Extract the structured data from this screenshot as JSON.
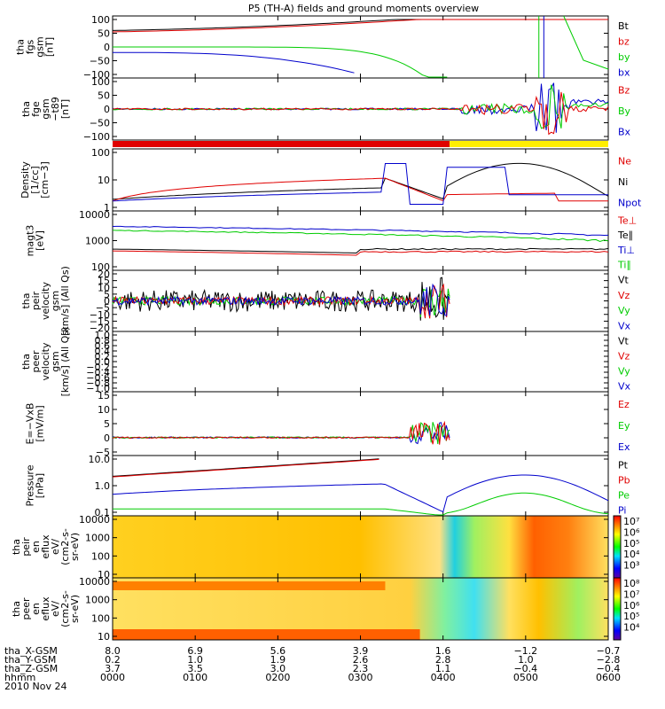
{
  "title": "P5 (TH-A) fields and ground moments overview",
  "colors": {
    "black": "#000000",
    "red": "#e00000",
    "green": "#00cc00",
    "blue": "#0000cc",
    "yellow": "#ffee00"
  },
  "panels": [
    {
      "id": "fgs",
      "ylabel": [
        "tha",
        "fgs",
        "gsm",
        "[nT]"
      ],
      "ticks": [
        "100",
        "50",
        "0",
        "−50",
        "−100"
      ],
      "legend": [
        {
          "t": "Bt",
          "c": "black"
        },
        {
          "t": "bz",
          "c": "red"
        },
        {
          "t": "by",
          "c": "green"
        },
        {
          "t": "bx",
          "c": "blue"
        }
      ]
    },
    {
      "id": "fge",
      "ylabel": [
        "tha",
        "fge",
        "gsm",
        "−t89",
        "[nT]"
      ],
      "ticks": [
        "100",
        "50",
        "0",
        "−50",
        "−100"
      ],
      "legend": [
        {
          "t": "Bz",
          "c": "red"
        },
        {
          "t": "By",
          "c": "green"
        },
        {
          "t": "Bx",
          "c": "blue"
        }
      ]
    },
    {
      "id": "density",
      "ylabel": [
        "Density",
        "[1/cc]",
        "[cm−3]"
      ],
      "ticks": [
        "100",
        "10",
        "1"
      ],
      "legend": [
        {
          "t": "Ne",
          "c": "red"
        },
        {
          "t": "Ni",
          "c": "black"
        },
        {
          "t": "Npot",
          "c": "blue"
        }
      ]
    },
    {
      "id": "temp",
      "ylabel": [
        "magt3",
        "[eV]"
      ],
      "ticks": [
        "10000",
        "1000",
        "100"
      ],
      "legend": [
        {
          "t": "Te⊥",
          "c": "red"
        },
        {
          "t": "Te∥",
          "c": "black"
        },
        {
          "t": "Ti⊥",
          "c": "blue"
        },
        {
          "t": "Ti∥",
          "c": "green"
        }
      ]
    },
    {
      "id": "peir_v",
      "ylabel": [
        "tha",
        "peir",
        "velocity",
        "gsm",
        "[km/s] (All Qs)"
      ],
      "ticks": [
        "20",
        "15",
        "10",
        "5",
        "0",
        "−5",
        "−10",
        "−15",
        "−20"
      ],
      "legend": [
        {
          "t": "Vt",
          "c": "black"
        },
        {
          "t": "Vz",
          "c": "red"
        },
        {
          "t": "Vy",
          "c": "green"
        },
        {
          "t": "Vx",
          "c": "blue"
        }
      ]
    },
    {
      "id": "peer_v",
      "ylabel": [
        "tha",
        "peer",
        "velocity",
        "gsm",
        "[km/s] (All Qs)"
      ],
      "ticks": [
        "1.0",
        "0.8",
        "0.6",
        "0.4",
        "0.2",
        "0.0",
        "−0.2",
        "−0.4",
        "−0.6",
        "−0.8",
        "−1.0"
      ],
      "legend": [
        {
          "t": "Vt",
          "c": "black"
        },
        {
          "t": "Vz",
          "c": "red"
        },
        {
          "t": "Vy",
          "c": "green"
        },
        {
          "t": "Vx",
          "c": "blue"
        }
      ]
    },
    {
      "id": "efield",
      "ylabel": [
        "E=−VxB",
        "[mV/m]"
      ],
      "ticks": [
        "15",
        "10",
        "5",
        "0",
        "−5"
      ],
      "legend": [
        {
          "t": "Ez",
          "c": "red"
        },
        {
          "t": "Ey",
          "c": "green"
        },
        {
          "t": "Ex",
          "c": "blue"
        }
      ]
    },
    {
      "id": "pressure",
      "ylabel": [
        "Pressure",
        "[nPa]"
      ],
      "ticks": [
        "10.0",
        "1.0",
        "0.1"
      ],
      "legend": [
        {
          "t": "Pt",
          "c": "black"
        },
        {
          "t": "Pb",
          "c": "red"
        },
        {
          "t": "Pe",
          "c": "green"
        },
        {
          "t": "Pi",
          "c": "blue"
        }
      ]
    },
    {
      "id": "peir_en",
      "ylabel": [
        "tha",
        "peir",
        "en",
        "eflux",
        "eV/",
        "(cm2-s-",
        "sr-eV)"
      ],
      "ticks": [
        "10000",
        "1000",
        "100",
        "10"
      ],
      "colorbar": [
        "10⁷",
        "10⁶",
        "10⁵",
        "10⁴",
        "10³"
      ]
    },
    {
      "id": "peer_en",
      "ylabel": [
        "tha",
        "peer",
        "en",
        "eflux",
        "eV/",
        "(cm2-s-",
        "sr-eV)"
      ],
      "ticks": [
        "10000",
        "1000",
        "100",
        "10"
      ],
      "colorbar": [
        "10⁸",
        "10⁷",
        "10⁶",
        "10⁵",
        "10⁴"
      ]
    }
  ],
  "ephemeris": {
    "rows": [
      {
        "label": "tha_X-GSM",
        "values": [
          "8.0",
          "6.9",
          "5.6",
          "3.9",
          "1.6",
          "−1.2",
          "−0.7"
        ]
      },
      {
        "label": "tha_Y-GSM",
        "values": [
          "0.2",
          "1.0",
          "1.9",
          "2.6",
          "2.8",
          "1.0",
          "−2.8"
        ]
      },
      {
        "label": "tha_Z-GSM",
        "values": [
          "3.7",
          "3.5",
          "3.0",
          "2.3",
          "1.1",
          "−0.4",
          "−0.4"
        ]
      },
      {
        "label": "hhmm",
        "values": [
          "0000",
          "0100",
          "0200",
          "0300",
          "0400",
          "0500",
          "0600"
        ]
      }
    ],
    "date": "2010 Nov 24"
  },
  "chart_data": {
    "type": "line",
    "x_unit": "hhmm (UT)",
    "x_ticks": [
      "0000",
      "0100",
      "0200",
      "0300",
      "0400",
      "0500",
      "0600"
    ],
    "series": [
      {
        "name": "Bt",
        "x": [
          "0000",
          "0100",
          "0200",
          "0300",
          "0400",
          "0500"
        ],
        "values": [
          60,
          80,
          100,
          100,
          100,
          100
        ]
      },
      {
        "name": "bz",
        "x": [
          "0000",
          "0100",
          "0200",
          "0300",
          "0400",
          "0500"
        ],
        "values": [
          55,
          75,
          100,
          100,
          100,
          100
        ]
      },
      {
        "name": "by",
        "x": [
          "0000",
          "0100",
          "0200",
          "0300",
          "0400",
          "0500"
        ],
        "values": [
          0,
          0,
          0,
          -5,
          -100,
          -100
        ]
      },
      {
        "name": "bx",
        "x": [
          "0000",
          "0100",
          "0200",
          "0300",
          "0400",
          "0500"
        ],
        "values": [
          -20,
          -40,
          -75,
          -100,
          -100,
          -100
        ]
      },
      {
        "name": "Ni",
        "x": [
          "0000",
          "0100",
          "0200",
          "0300",
          "0400",
          "0500",
          "0600"
        ],
        "values": [
          1.2,
          2.5,
          5,
          10,
          1,
          50,
          2
        ]
      },
      {
        "name": "Pt",
        "x": [
          "0000",
          "0100",
          "0200",
          "0300"
        ],
        "values": [
          1.8,
          3,
          6,
          10
        ]
      },
      {
        "name": "Pi",
        "x": [
          "0000",
          "0100",
          "0200",
          "0300",
          "0400",
          "0500",
          "0600"
        ],
        "values": [
          0.3,
          0.5,
          0.8,
          0.8,
          0.05,
          2,
          0.2
        ]
      },
      {
        "name": "Pe",
        "x": [
          "0000",
          "0100",
          "0200",
          "0300",
          "0400",
          "0500",
          "0600"
        ],
        "values": [
          0.07,
          0.07,
          0.07,
          0.07,
          0.04,
          0.3,
          0.06
        ]
      }
    ]
  }
}
